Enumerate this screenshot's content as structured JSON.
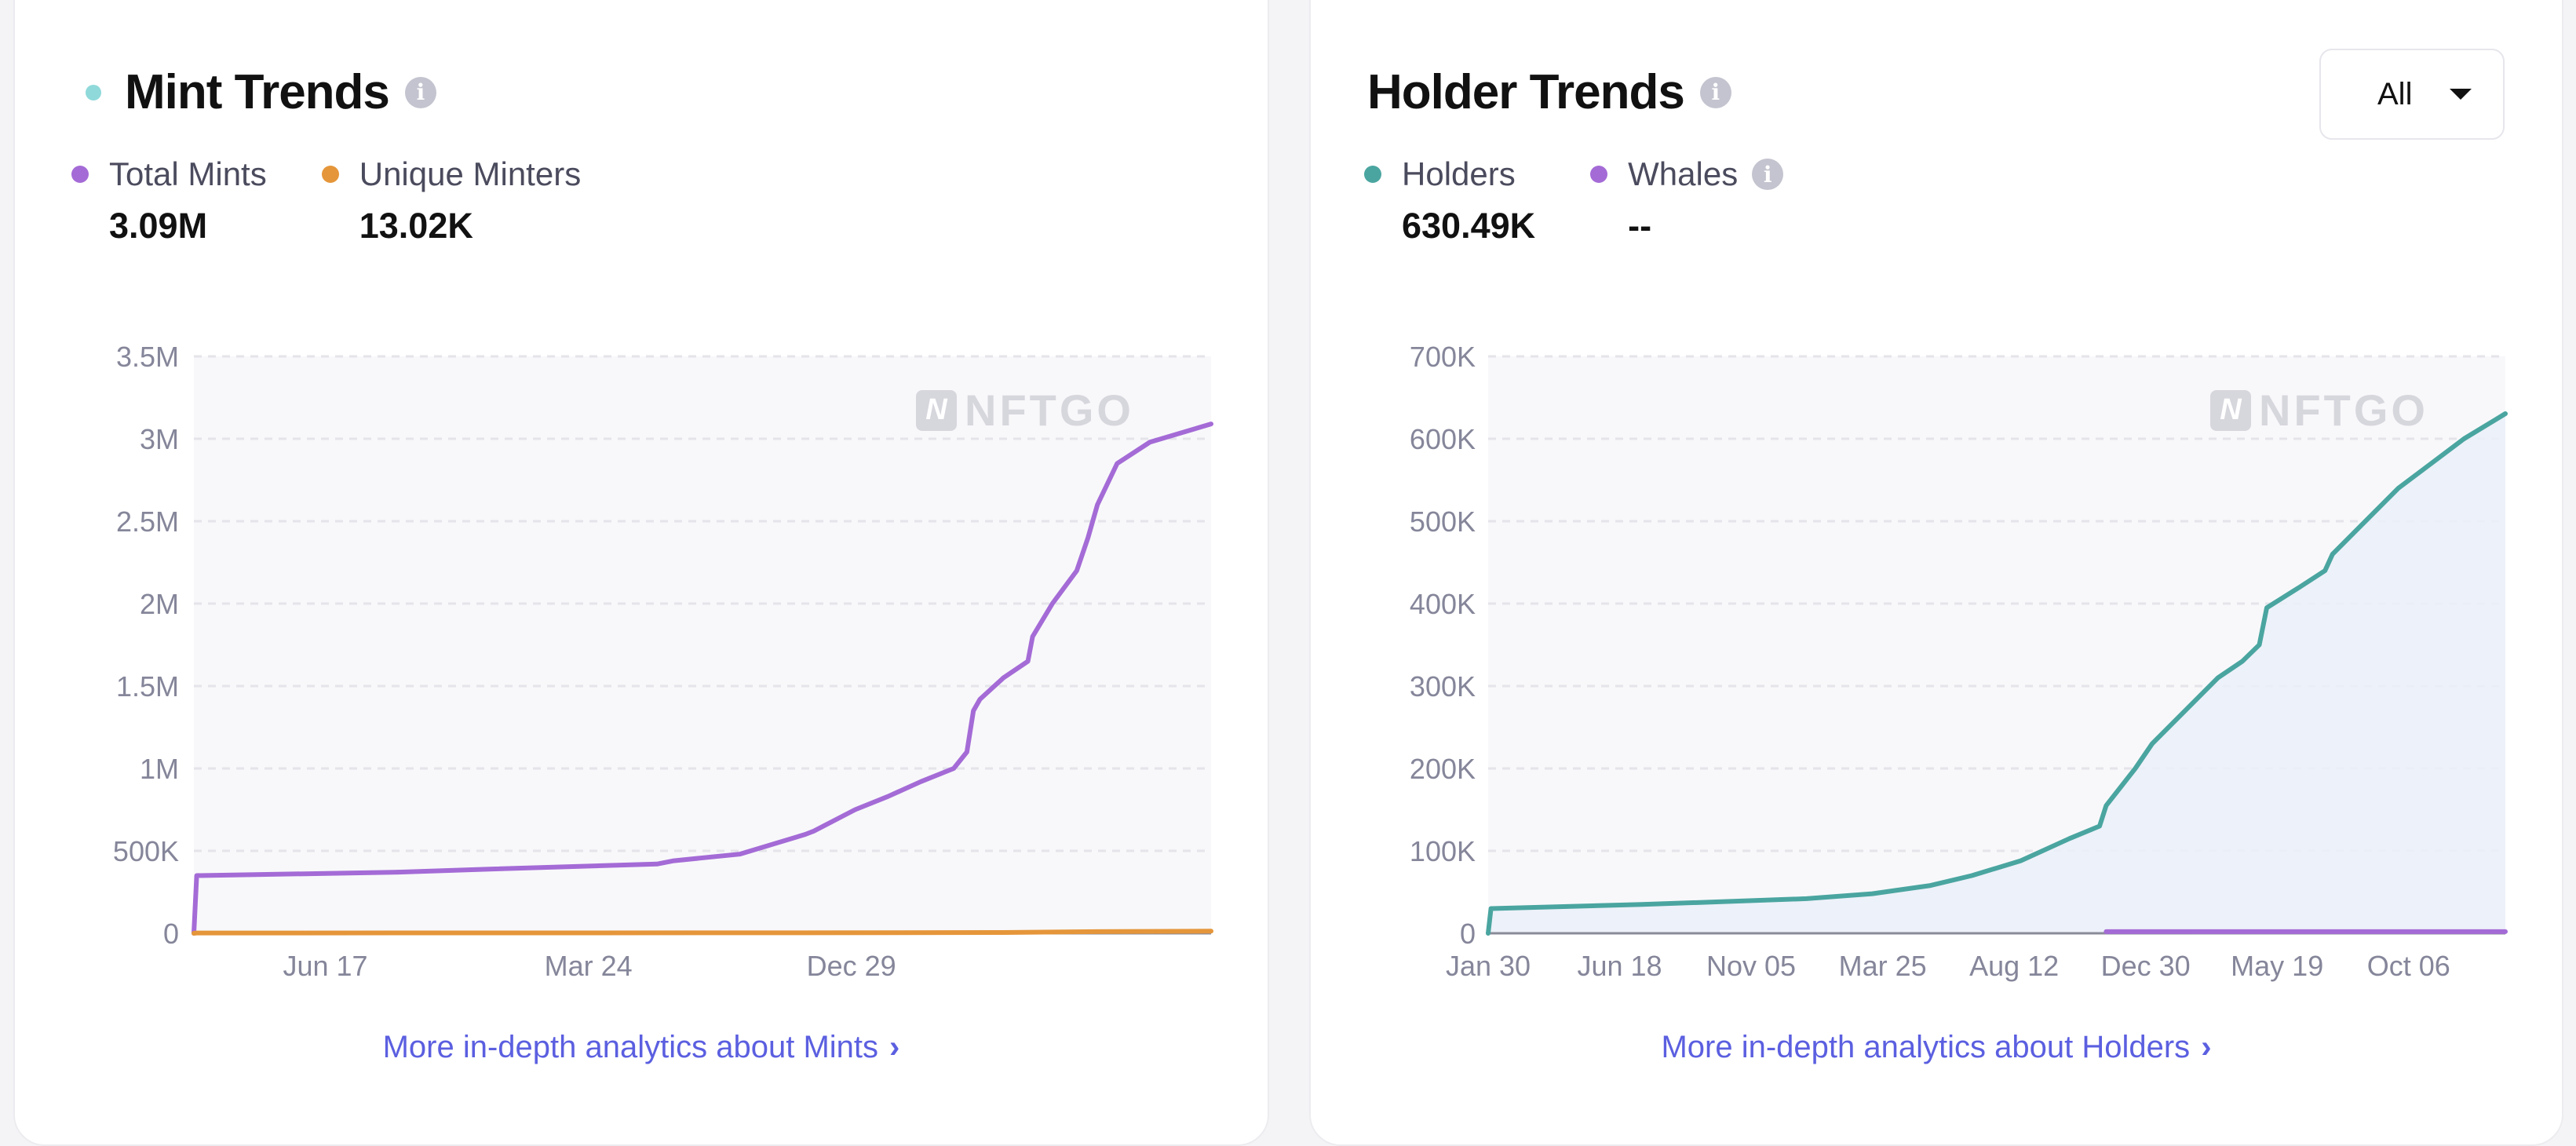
{
  "mint": {
    "title": "Mint Trends",
    "title_dot_color": "#8fd9da",
    "info_icon": "i",
    "legend": [
      {
        "label": "Total Mints",
        "value": "3.09M",
        "color": "#a46bd6"
      },
      {
        "label": "Unique Minters",
        "value": "13.02K",
        "color": "#e5963a"
      }
    ],
    "link": "More in-depth analytics about Mints",
    "watermark": "NFTGO"
  },
  "holder": {
    "title": "Holder Trends",
    "info_icon": "i",
    "dropdown": "All",
    "legend": [
      {
        "label": "Holders",
        "value": "630.49K",
        "color": "#4aa5a0"
      },
      {
        "label": "Whales",
        "value": "--",
        "color": "#a46bd6"
      }
    ],
    "link": "More in-depth analytics about Holders",
    "watermark": "NFTGO"
  },
  "chart_data": [
    {
      "type": "line",
      "title": "Mint Trends",
      "ylim": [
        0,
        3500000
      ],
      "yticks": [
        0,
        500000,
        1000000,
        1500000,
        2000000,
        2500000,
        3000000,
        3500000
      ],
      "ytick_labels": [
        "0",
        "500K",
        "1M",
        "1.5M",
        "2M",
        "2.5M",
        "3M",
        "3.5M"
      ],
      "xlim": [
        "2020-01-29",
        "2023-01-16"
      ],
      "xticks": [
        "2020-06-17",
        "2021-03-24",
        "2021-12-29"
      ],
      "xtick_labels": [
        "Jun 17",
        "Mar 24",
        "Dec 29"
      ],
      "grid": true,
      "series": [
        {
          "name": "Total Mints",
          "color": "#a46bd6",
          "points": [
            [
              "2020-01-29",
              0
            ],
            [
              "2020-02-01",
              350000
            ],
            [
              "2020-08-29",
              370000
            ],
            [
              "2020-12-12",
              390000
            ],
            [
              "2021-06-05",
              420000
            ],
            [
              "2021-06-23",
              440000
            ],
            [
              "2021-09-01",
              480000
            ],
            [
              "2021-11-10",
              600000
            ],
            [
              "2021-11-19",
              620000
            ],
            [
              "2022-01-02",
              750000
            ],
            [
              "2022-02-06",
              830000
            ],
            [
              "2022-03-13",
              920000
            ],
            [
              "2022-04-17",
              1000000
            ],
            [
              "2022-05-01",
              1100000
            ],
            [
              "2022-05-08",
              1350000
            ],
            [
              "2022-05-15",
              1420000
            ],
            [
              "2022-06-09",
              1550000
            ],
            [
              "2022-07-05",
              1650000
            ],
            [
              "2022-07-10",
              1800000
            ],
            [
              "2022-07-31",
              2000000
            ],
            [
              "2022-08-26",
              2200000
            ],
            [
              "2022-09-07",
              2400000
            ],
            [
              "2022-09-17",
              2600000
            ],
            [
              "2022-10-08",
              2850000
            ],
            [
              "2022-11-12",
              2980000
            ],
            [
              "2023-01-16",
              3090000
            ]
          ]
        },
        {
          "name": "Unique Minters",
          "color": "#e5963a",
          "points": [
            [
              "2020-01-29",
              0
            ],
            [
              "2020-02-01",
              2000
            ],
            [
              "2021-11-10",
              3000
            ],
            [
              "2022-06-09",
              5000
            ],
            [
              "2022-09-17",
              10000
            ],
            [
              "2023-01-16",
              13020
            ]
          ]
        }
      ]
    },
    {
      "type": "area",
      "title": "Holder Trends",
      "ylim": [
        0,
        700000
      ],
      "yticks": [
        0,
        100000,
        200000,
        300000,
        400000,
        500000,
        600000,
        700000
      ],
      "ytick_labels": [
        "0",
        "100K",
        "200K",
        "300K",
        "400K",
        "500K",
        "600K",
        "700K"
      ],
      "xlim": [
        "2020-01-30",
        "2023-01-17"
      ],
      "xticks": [
        "2020-01-30",
        "2020-06-18",
        "2020-11-05",
        "2021-03-25",
        "2021-08-12",
        "2021-12-30",
        "2022-05-19",
        "2022-10-06"
      ],
      "xtick_labels": [
        "Jan 30",
        "Jun 18",
        "Nov 05",
        "Mar 25",
        "Aug 12",
        "Dec 30",
        "May 19",
        "Oct 06"
      ],
      "grid": true,
      "series": [
        {
          "name": "Holders",
          "color": "#4aa5a0",
          "fill": "#ebf0f8",
          "points": [
            [
              "2020-01-30",
              0
            ],
            [
              "2020-02-02",
              30000
            ],
            [
              "2020-07-12",
              35000
            ],
            [
              "2021-01-03",
              42000
            ],
            [
              "2021-03-14",
              48000
            ],
            [
              "2021-05-15",
              58000
            ],
            [
              "2021-06-28",
              70000
            ],
            [
              "2021-08-19",
              88000
            ],
            [
              "2021-10-10",
              115000
            ],
            [
              "2021-11-11",
              130000
            ],
            [
              "2021-11-18",
              155000
            ],
            [
              "2021-12-19",
              200000
            ],
            [
              "2022-01-06",
              230000
            ],
            [
              "2022-02-10",
              270000
            ],
            [
              "2022-03-17",
              310000
            ],
            [
              "2022-04-12",
              330000
            ],
            [
              "2022-04-30",
              350000
            ],
            [
              "2022-05-08",
              395000
            ],
            [
              "2022-06-12",
              420000
            ],
            [
              "2022-07-09",
              440000
            ],
            [
              "2022-07-17",
              460000
            ],
            [
              "2022-08-21",
              500000
            ],
            [
              "2022-09-25",
              540000
            ],
            [
              "2022-10-30",
              570000
            ],
            [
              "2022-12-04",
              600000
            ],
            [
              "2023-01-17",
              630490
            ]
          ]
        },
        {
          "name": "Whales",
          "color": "#a46bd6",
          "points": [
            [
              "2021-11-18",
              2000
            ],
            [
              "2023-01-17",
              2000
            ]
          ]
        }
      ]
    }
  ]
}
